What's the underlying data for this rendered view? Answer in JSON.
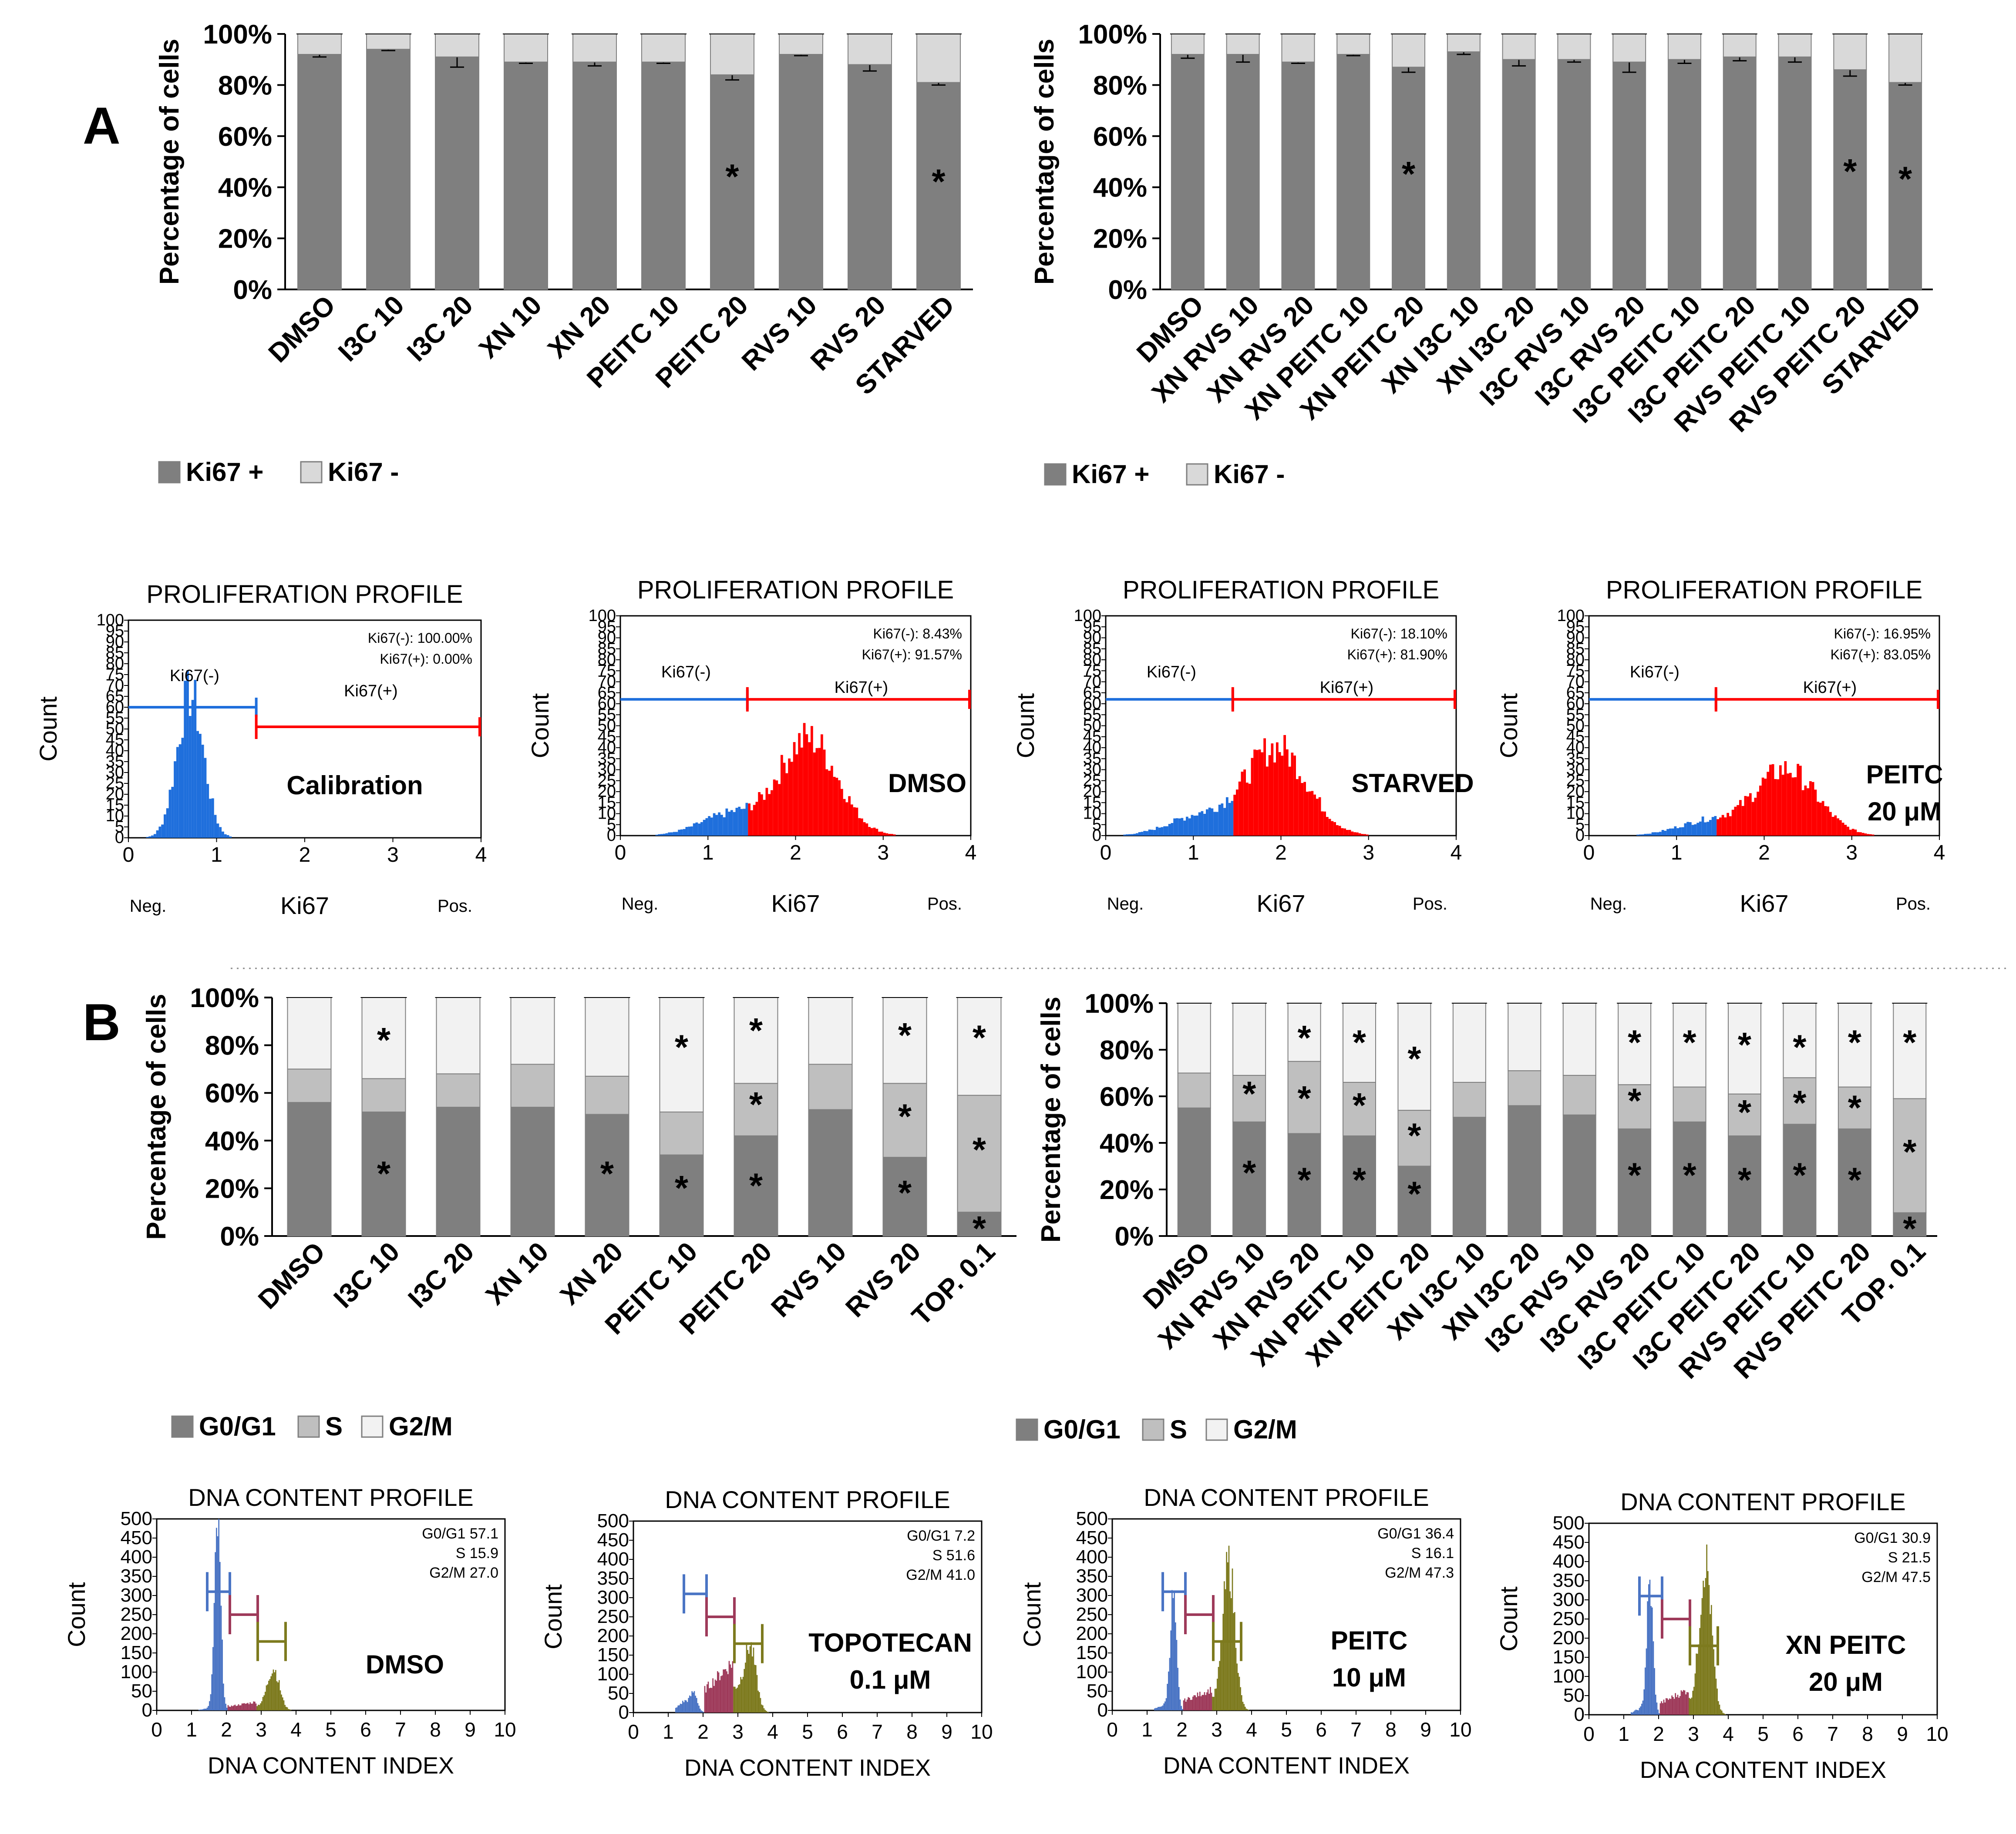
{
  "panel_labels": {
    "a": "A",
    "b": "B"
  },
  "chart_data": [
    {
      "id": "A-left",
      "type": "bar",
      "stacked": true,
      "ylabel": "Percentage of cells",
      "yticks": [
        "0%",
        "20%",
        "40%",
        "60%",
        "80%",
        "100%"
      ],
      "ylim": [
        0,
        100
      ],
      "categories": [
        "DMSO",
        "I3C 10",
        "I3C 20",
        "XN 10",
        "XN 20",
        "PEITC 10",
        "PEITC 20",
        "RVS 10",
        "RVS 20",
        "STARVED"
      ],
      "series": [
        {
          "name": "Ki67 +",
          "color": "#7f7f7f",
          "values": [
            92,
            94,
            91,
            89,
            89,
            89,
            84,
            92,
            88,
            81
          ],
          "errors": [
            1,
            0.5,
            4,
            0.5,
            1.5,
            0.5,
            2,
            0.5,
            2.5,
            1
          ]
        },
        {
          "name": "Ki67 -",
          "color": "#d9d9d9",
          "values": [
            8,
            6,
            9,
            11,
            11,
            11,
            16,
            8,
            12,
            19
          ]
        }
      ],
      "asterisks": [
        {
          "index": 6,
          "value": 45
        },
        {
          "index": 9,
          "value": 43
        }
      ],
      "legend": [
        "Ki67 +",
        "Ki67 -"
      ]
    },
    {
      "id": "A-right",
      "type": "bar",
      "stacked": true,
      "ylabel": "Percentage of cells",
      "yticks": [
        "0%",
        "20%",
        "40%",
        "60%",
        "80%",
        "100%"
      ],
      "ylim": [
        0,
        100
      ],
      "categories": [
        "DMSO",
        "XN RVS 10",
        "XN RVS 20",
        "XN PEITC 10",
        "XN PEITC 20",
        "XN I3C 10",
        "XN I3C 20",
        "I3C RVS 10",
        "I3C RVS 20",
        "I3C PEITC 10",
        "I3C PEITC 20",
        "RVS PEITC 10",
        "RVS PEITC 20",
        "STARVED"
      ],
      "series": [
        {
          "name": "Ki67 +",
          "color": "#7f7f7f",
          "values": [
            92,
            92,
            89,
            92,
            87,
            93,
            90,
            90,
            89,
            90,
            91,
            91,
            86,
            81
          ],
          "errors": [
            1.5,
            3,
            0.5,
            0.5,
            2,
            1,
            2.5,
            1,
            4,
            1.5,
            1.5,
            2,
            2.5,
            1
          ]
        },
        {
          "name": "Ki67 -",
          "color": "#d9d9d9",
          "values": [
            8,
            8,
            11,
            8,
            13,
            7,
            10,
            10,
            11,
            10,
            9,
            9,
            14,
            19
          ]
        }
      ],
      "asterisks": [
        {
          "index": 4,
          "value": 46
        },
        {
          "index": 12,
          "value": 47
        },
        {
          "index": 13,
          "value": 44
        }
      ],
      "legend": [
        "Ki67 +",
        "Ki67 -"
      ]
    },
    {
      "id": "B-left",
      "type": "bar",
      "stacked": true,
      "ylabel": "Percentage of cells",
      "yticks": [
        "0%",
        "20%",
        "40%",
        "60%",
        "80%",
        "100%"
      ],
      "ylim": [
        0,
        100
      ],
      "categories": [
        "DMSO",
        "I3C 10",
        "I3C 20",
        "XN 10",
        "XN 20",
        "PEITC 10",
        "PEITC 20",
        "RVS 10",
        "RVS 20",
        "TOP. 0.1"
      ],
      "series": [
        {
          "name": "G0/G1",
          "color": "#7f7f7f",
          "values": [
            56,
            52,
            54,
            54,
            51,
            34,
            42,
            53,
            33,
            10
          ]
        },
        {
          "name": "S",
          "color": "#bfbfbf",
          "values": [
            14,
            14,
            14,
            18,
            16,
            18,
            22,
            19,
            31,
            49
          ]
        },
        {
          "name": "G2/M",
          "color": "#f2f2f2",
          "values": [
            30,
            34,
            32,
            28,
            33,
            48,
            36,
            28,
            36,
            41
          ]
        }
      ],
      "asterisks": [
        {
          "index": 1,
          "value": 83
        },
        {
          "index": 1,
          "value": 27
        },
        {
          "index": 4,
          "value": 27
        },
        {
          "index": 5,
          "value": 80
        },
        {
          "index": 5,
          "value": 21
        },
        {
          "index": 6,
          "value": 87
        },
        {
          "index": 6,
          "value": 56
        },
        {
          "index": 6,
          "value": 22
        },
        {
          "index": 8,
          "value": 85
        },
        {
          "index": 8,
          "value": 51
        },
        {
          "index": 8,
          "value": 19
        },
        {
          "index": 9,
          "value": 84
        },
        {
          "index": 9,
          "value": 37
        },
        {
          "index": 9,
          "value": 4
        }
      ],
      "legend": [
        "G0/G1",
        "S",
        "G2/M"
      ]
    },
    {
      "id": "B-right",
      "type": "bar",
      "stacked": true,
      "ylabel": "Percentage of cells",
      "yticks": [
        "0%",
        "20%",
        "40%",
        "60%",
        "80%",
        "100%"
      ],
      "ylim": [
        0,
        100
      ],
      "categories": [
        "DMSO",
        "XN RVS 10",
        "XN RVS 20",
        "XN PEITC 10",
        "XN PEITC 20",
        "XN I3C 10",
        "XN I3C 20",
        "I3C RVS 10",
        "I3C RVS 20",
        "I3C PEITC 10",
        "I3C PEITC 20",
        "RVS PEITC 10",
        "RVS PEITC 20",
        "TOP. 0.1"
      ],
      "series": [
        {
          "name": "G0/G1",
          "color": "#7f7f7f",
          "values": [
            55,
            49,
            44,
            43,
            30,
            51,
            56,
            52,
            46,
            49,
            43,
            48,
            46,
            10
          ]
        },
        {
          "name": "S",
          "color": "#bfbfbf",
          "values": [
            15,
            20,
            31,
            23,
            24,
            15,
            15,
            17,
            19,
            15,
            18,
            20,
            18,
            49
          ]
        },
        {
          "name": "G2/M",
          "color": "#f2f2f2",
          "values": [
            30,
            31,
            25,
            34,
            46,
            34,
            29,
            31,
            35,
            36,
            39,
            32,
            36,
            41
          ]
        }
      ],
      "asterisks": [
        {
          "index": 1,
          "value": 62
        },
        {
          "index": 1,
          "value": 28
        },
        {
          "index": 2,
          "value": 86
        },
        {
          "index": 2,
          "value": 60
        },
        {
          "index": 2,
          "value": 25
        },
        {
          "index": 3,
          "value": 84
        },
        {
          "index": 3,
          "value": 57
        },
        {
          "index": 3,
          "value": 25
        },
        {
          "index": 4,
          "value": 77
        },
        {
          "index": 4,
          "value": 44
        },
        {
          "index": 4,
          "value": 19
        },
        {
          "index": 8,
          "value": 84
        },
        {
          "index": 8,
          "value": 59
        },
        {
          "index": 8,
          "value": 27
        },
        {
          "index": 9,
          "value": 84
        },
        {
          "index": 9,
          "value": 27
        },
        {
          "index": 10,
          "value": 83
        },
        {
          "index": 10,
          "value": 54
        },
        {
          "index": 10,
          "value": 25
        },
        {
          "index": 11,
          "value": 82
        },
        {
          "index": 11,
          "value": 58
        },
        {
          "index": 11,
          "value": 27
        },
        {
          "index": 12,
          "value": 84
        },
        {
          "index": 12,
          "value": 56
        },
        {
          "index": 12,
          "value": 25
        },
        {
          "index": 13,
          "value": 84
        },
        {
          "index": 13,
          "value": 37
        },
        {
          "index": 13,
          "value": 4
        }
      ],
      "legend": [
        "G0/G1",
        "S",
        "G2/M"
      ]
    },
    {
      "type": "histogram",
      "group": "proliferation",
      "title": "PROLIFERATION PROFILE",
      "ylabel": "Count",
      "xlabel": "Ki67",
      "neg_label": "Neg.",
      "pos_label": "Pos.",
      "xticks": [
        "0",
        "1",
        "2",
        "3",
        "4"
      ],
      "xlim": [
        0,
        4
      ],
      "yticks": [
        "0",
        "5",
        "10",
        "15",
        "20",
        "25",
        "30",
        "35",
        "40",
        "45",
        "50",
        "55",
        "60",
        "65",
        "70",
        "75",
        "80",
        "85",
        "90",
        "95",
        "100"
      ],
      "ylim": [
        0,
        100
      ],
      "gate": 1.45,
      "neg_marker_label": "Ki67(-)",
      "pos_marker_label": "Ki67(+)",
      "neg_color": "#1f6fdc",
      "pos_color": "#ff0000",
      "panels": [
        {
          "label": "Calibration",
          "label2": "",
          "stat_neg": "Ki67(-): 100.00%",
          "stat_pos": "Ki67(+): 0.00%",
          "center": 0.7,
          "sd": 0.15,
          "peak": 66
        },
        {
          "label": "DMSO",
          "label2": "",
          "stat_neg": "Ki67(-): 8.43%",
          "stat_pos": "Ki67(+): 91.57%",
          "center": 2.15,
          "sd": 0.33,
          "peak": 44
        },
        {
          "label": "STARVED",
          "label2": "",
          "stat_neg": "Ki67(-): 18.10%",
          "stat_pos": "Ki67(+): 81.90%",
          "center": 1.95,
          "sd": 0.35,
          "peak": 40
        },
        {
          "label": "PEITC",
          "label2": "20 μM",
          "stat_neg": "Ki67(-): 16.95%",
          "stat_pos": "Ki67(+): 83.05%",
          "center": 2.25,
          "sd": 0.35,
          "peak": 30
        }
      ]
    },
    {
      "type": "histogram",
      "group": "dna",
      "title": "DNA CONTENT PROFILE",
      "ylabel": "Count",
      "xlabel": "DNA CONTENT INDEX",
      "xticks": [
        "0",
        "1",
        "2",
        "3",
        "4",
        "5",
        "6",
        "7",
        "8",
        "9",
        "10"
      ],
      "xlim": [
        0,
        10
      ],
      "yticks": [
        "0",
        "50",
        "100",
        "150",
        "200",
        "250",
        "300",
        "350",
        "400",
        "450",
        "500"
      ],
      "ylim": [
        0,
        500
      ],
      "colors": {
        "g1": "#4a74c4",
        "s": "#9e3a5a",
        "g2": "#7d7a1e"
      },
      "panels": [
        {
          "label": "DMSO",
          "label2": "",
          "stats": [
            "G0/G1 57.1",
            "S 15.9",
            "G2/M 27.0"
          ],
          "g1_peak": 470,
          "s_level": 20,
          "g2_peak": 110
        },
        {
          "label": "TOPOTECAN",
          "label2": "0.1 μM",
          "stats": [
            "G0/G1 7.2",
            "S 51.6",
            "G2/M 41.0"
          ],
          "g1_peak": 40,
          "s_level": 120,
          "g2_peak": 170
        },
        {
          "label": "PEITC",
          "label2": "10 μM",
          "stats": [
            "G0/G1 36.4",
            "S 16.1",
            "G2/M 47.3"
          ],
          "g1_peak": 290,
          "s_level": 50,
          "g2_peak": 380
        },
        {
          "label": "XN PEITC",
          "label2": "20 μM",
          "stats": [
            "G0/G1 30.9",
            "S 21.5",
            "G2/M 47.5"
          ],
          "g1_peak": 330,
          "s_level": 60,
          "g2_peak": 400
        }
      ]
    }
  ]
}
